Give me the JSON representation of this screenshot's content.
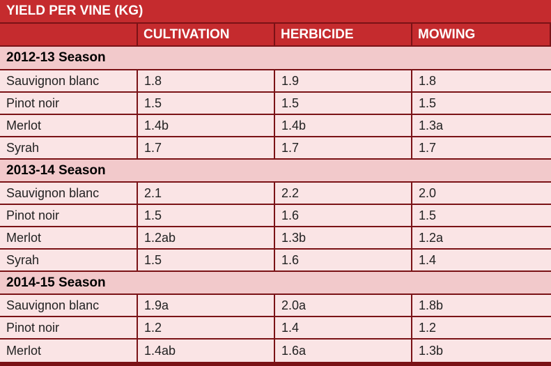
{
  "title": "YIELD PER VINE (KG)",
  "columns": [
    "",
    "CULTIVATION",
    "HERBICIDE",
    "MOWING"
  ],
  "sections": [
    {
      "season": "2012-13 Season",
      "rows": [
        [
          "Sauvignon blanc",
          "1.8",
          "1.9",
          "1.8"
        ],
        [
          "Pinot noir",
          "1.5",
          "1.5",
          "1.5"
        ],
        [
          "Merlot",
          "1.4b",
          "1.4b",
          "1.3a"
        ],
        [
          "Syrah",
          "1.7",
          "1.7",
          "1.7"
        ]
      ]
    },
    {
      "season": "2013-14 Season",
      "rows": [
        [
          "Sauvignon blanc",
          "2.1",
          "2.2",
          "2.0"
        ],
        [
          "Pinot noir",
          "1.5",
          "1.6",
          "1.5"
        ],
        [
          "Merlot",
          "1.2ab",
          "1.3b",
          "1.2a"
        ],
        [
          "Syrah",
          "1.5",
          "1.6",
          "1.4"
        ]
      ]
    },
    {
      "season": "2014-15 Season",
      "rows": [
        [
          "Sauvignon blanc",
          "1.9a",
          "2.0a",
          "1.8b"
        ],
        [
          "Pinot noir",
          "1.2",
          "1.4",
          "1.2"
        ],
        [
          "Merlot",
          "1.4ab",
          "1.6a",
          "1.3b"
        ]
      ]
    }
  ],
  "colors": {
    "header_red": "#c52b2e",
    "border_dark": "#7a1216",
    "season_band": "#f2c9cb",
    "data_fill": "#fae4e5"
  }
}
